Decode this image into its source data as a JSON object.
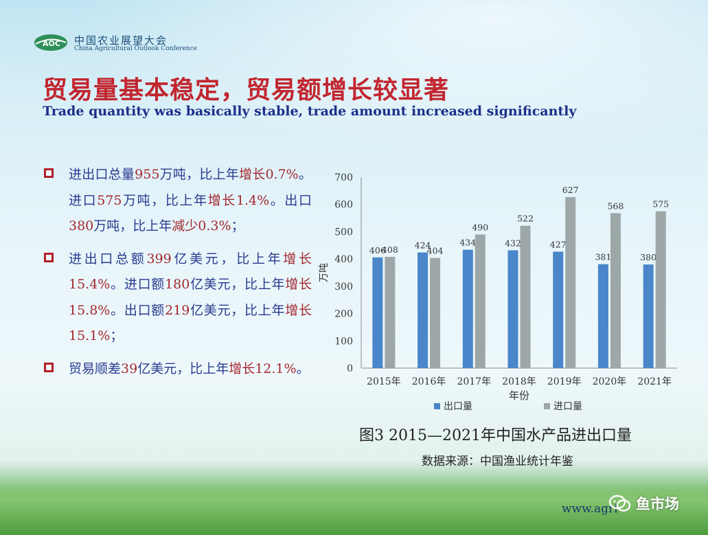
{
  "logo": {
    "mark_text": "AOC",
    "name_cn": "中国农业展望大会",
    "name_en": "China Agricultural Outlook Conference"
  },
  "title_cn": "贸易量基本稳定，贸易额增长较显著",
  "title_en": "Trade quantity was basically stable, trade amount increased significantly",
  "bullets": [
    {
      "segments": [
        {
          "text": "进出口总量",
          "color": "blue"
        },
        {
          "text": "955",
          "color": "red"
        },
        {
          "text": "万吨，比上年",
          "color": "blue"
        },
        {
          "text": "增长0.7%",
          "color": "red"
        },
        {
          "text": "。进口",
          "color": "blue"
        },
        {
          "text": "575",
          "color": "red"
        },
        {
          "text": "万吨，比上年",
          "color": "blue"
        },
        {
          "text": "增长1.4%",
          "color": "red"
        },
        {
          "text": "。出口",
          "color": "blue"
        },
        {
          "text": "380",
          "color": "red"
        },
        {
          "text": "万吨，比上年",
          "color": "blue"
        },
        {
          "text": "减少0.3%",
          "color": "red"
        },
        {
          "text": "；",
          "color": "blue"
        }
      ]
    },
    {
      "segments": [
        {
          "text": "进出口总额",
          "color": "blue"
        },
        {
          "text": "399",
          "color": "red"
        },
        {
          "text": "亿美元，比上年",
          "color": "blue"
        },
        {
          "text": "增长15.4%",
          "color": "red"
        },
        {
          "text": "。进口额",
          "color": "blue"
        },
        {
          "text": "180",
          "color": "red"
        },
        {
          "text": "亿美元，比上年",
          "color": "blue"
        },
        {
          "text": "增长15.8%",
          "color": "red"
        },
        {
          "text": "。出口额",
          "color": "blue"
        },
        {
          "text": "219",
          "color": "red"
        },
        {
          "text": "亿美元，比上年",
          "color": "blue"
        },
        {
          "text": "增长15.1%",
          "color": "red"
        },
        {
          "text": "；",
          "color": "blue"
        }
      ]
    },
    {
      "segments": [
        {
          "text": "贸易顺差",
          "color": "blue"
        },
        {
          "text": "39",
          "color": "red"
        },
        {
          "text": "亿美元，比上年",
          "color": "blue"
        },
        {
          "text": "增长12.1%",
          "color": "red"
        },
        {
          "text": "。",
          "color": "blue"
        }
      ]
    }
  ],
  "chart_data": {
    "type": "bar",
    "categories": [
      "2015年",
      "2016年",
      "2017年",
      "2018年",
      "2019年",
      "2020年",
      "2021年"
    ],
    "series": [
      {
        "name": "出口量",
        "values": [
          406,
          424,
          434,
          432,
          427,
          381,
          380
        ],
        "color": "#4a86c9"
      },
      {
        "name": "进口量",
        "values": [
          408,
          404,
          490,
          522,
          627,
          568,
          575
        ],
        "color": "#9ea7a8"
      }
    ],
    "title": "",
    "xlabel": "年份",
    "ylabel": "万吨",
    "ylim": [
      0,
      700
    ],
    "yticks": [
      0,
      100,
      200,
      300,
      400,
      500,
      600,
      700
    ],
    "grid": false,
    "legend": "bottom"
  },
  "caption": "图3  2015—2021年中国水产品进出口量",
  "source": "数据来源：中国渔业统计年鉴",
  "website": "www.agri",
  "watermark": "鱼市场",
  "colors": {
    "title_red": "#c2262f",
    "text_blue": "#2a3b8f",
    "text_red": "#a3272e",
    "title_blue": "#1c2f8a"
  }
}
